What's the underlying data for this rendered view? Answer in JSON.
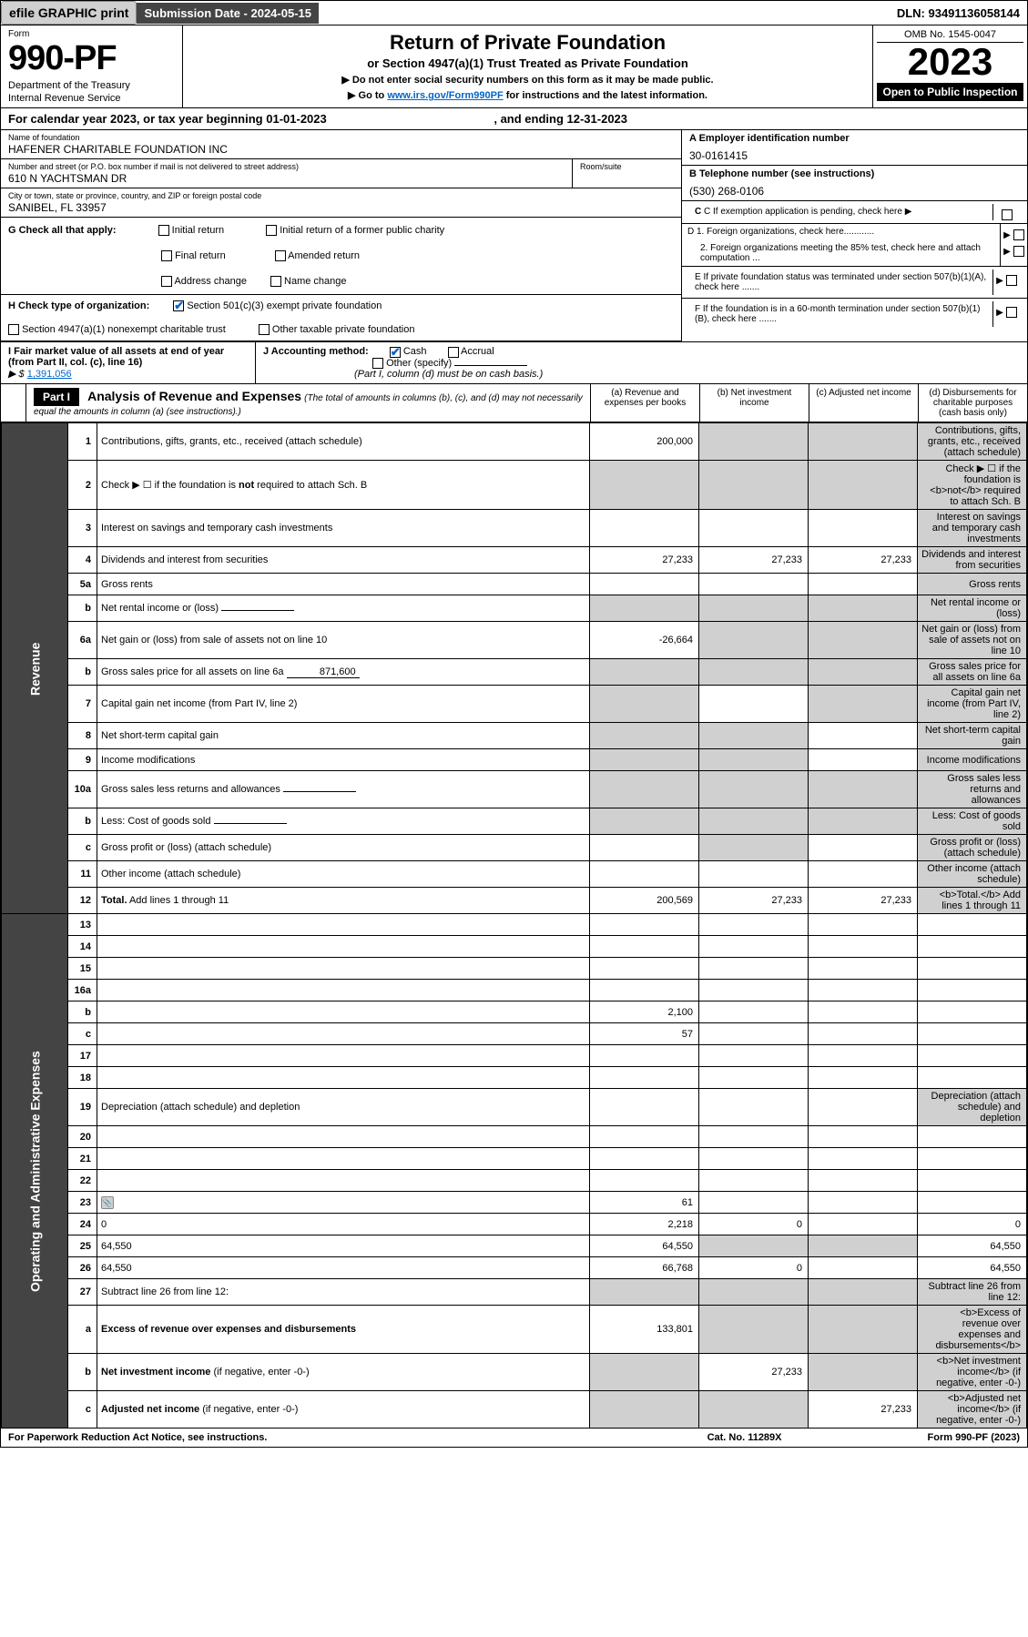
{
  "topbar": {
    "efile": "efile GRAPHIC print",
    "submission": "Submission Date - 2024-05-15",
    "dln": "DLN: 93491136058144"
  },
  "header": {
    "form_label": "Form",
    "form_number": "990-PF",
    "dept1": "Department of the Treasury",
    "dept2": "Internal Revenue Service",
    "title": "Return of Private Foundation",
    "subtitle": "or Section 4947(a)(1) Trust Treated as Private Foundation",
    "note1": "▶ Do not enter social security numbers on this form as it may be made public.",
    "note2_pre": "▶ Go to ",
    "note2_link": "www.irs.gov/Form990PF",
    "note2_post": " for instructions and the latest information.",
    "omb": "OMB No. 1545-0047",
    "year": "2023",
    "inspection": "Open to Public Inspection"
  },
  "cal_year": {
    "prefix": "For calendar year 2023, or tax year beginning ",
    "begin": "01-01-2023",
    "mid": " , and ending ",
    "end": "12-31-2023"
  },
  "entity": {
    "name_label": "Name of foundation",
    "name": "HAFENER CHARITABLE FOUNDATION INC",
    "addr_label": "Number and street (or P.O. box number if mail is not delivered to street address)",
    "addr": "610 N YACHTSMAN DR",
    "room_label": "Room/suite",
    "city_label": "City or town, state or province, country, and ZIP or foreign postal code",
    "city": "SANIBEL, FL  33957",
    "a_label": "A Employer identification number",
    "a_val": "30-0161415",
    "b_label": "B Telephone number (see instructions)",
    "b_val": "(530) 268-0106",
    "c_label": "C If exemption application is pending, check here",
    "d1": "D 1. Foreign organizations, check here............",
    "d2": "2. Foreign organizations meeting the 85% test, check here and attach computation ...",
    "e": "E  If private foundation status was terminated under section 507(b)(1)(A), check here .......",
    "f": "F  If the foundation is in a 60-month termination under section 507(b)(1)(B), check here .......",
    "g_label": "G Check all that apply:",
    "g_opts": [
      "Initial return",
      "Initial return of a former public charity",
      "Final return",
      "Amended return",
      "Address change",
      "Name change"
    ],
    "h_label": "H Check type of organization:",
    "h1": "Section 501(c)(3) exempt private foundation",
    "h2": "Section 4947(a)(1) nonexempt charitable trust",
    "h3": "Other taxable private foundation",
    "i_label": "I Fair market value of all assets at end of year (from Part II, col. (c), line 16)",
    "i_prefix": "▶ $",
    "i_val": "1,391,056",
    "j_label": "J Accounting method:",
    "j_cash": "Cash",
    "j_accrual": "Accrual",
    "j_other": "Other (specify)",
    "j_note": "(Part I, column (d) must be on cash basis.)"
  },
  "part1": {
    "label": "Part I",
    "title": "Analysis of Revenue and Expenses",
    "title_note": "(The total of amounts in columns (b), (c), and (d) may not necessarily equal the amounts in column (a) (see instructions).)",
    "col_a": "(a) Revenue and expenses per books",
    "col_b": "(b) Net investment income",
    "col_c": "(c) Adjusted net income",
    "col_d": "(d) Disbursements for charitable purposes (cash basis only)",
    "side_revenue": "Revenue",
    "side_expenses": "Operating and Administrative Expenses"
  },
  "rows": [
    {
      "n": "1",
      "d": "Contributions, gifts, grants, etc., received (attach schedule)",
      "a": "200,000",
      "b_shade": true,
      "c_shade": true,
      "d_shade": true
    },
    {
      "n": "2",
      "d": "Check ▶ ☐ if the foundation is <b>not</b> required to attach Sch. B",
      "dots": true,
      "a_shade": true,
      "b_shade": true,
      "c_shade": true,
      "d_shade": true
    },
    {
      "n": "3",
      "d": "Interest on savings and temporary cash investments",
      "a": "",
      "b": "",
      "c": "",
      "d_shade": true
    },
    {
      "n": "4",
      "d": "Dividends and interest from securities",
      "dots": true,
      "a": "27,233",
      "b": "27,233",
      "c": "27,233",
      "d_shade": true
    },
    {
      "n": "5a",
      "d": "Gross rents",
      "dots": true,
      "a": "",
      "b": "",
      "c": "",
      "d_shade": true
    },
    {
      "n": "b",
      "d": "Net rental income or (loss)",
      "inline": "",
      "a_shade": true,
      "b_shade": true,
      "c_shade": true,
      "d_shade": true
    },
    {
      "n": "6a",
      "d": "Net gain or (loss) from sale of assets not on line 10",
      "a": "-26,664",
      "b_shade": true,
      "c_shade": true,
      "d_shade": true
    },
    {
      "n": "b",
      "d": "Gross sales price for all assets on line 6a",
      "inline": "871,600",
      "a_shade": true,
      "b_shade": true,
      "c_shade": true,
      "d_shade": true
    },
    {
      "n": "7",
      "d": "Capital gain net income (from Part IV, line 2)",
      "dots": true,
      "a_shade": true,
      "b": "",
      "c_shade": true,
      "d_shade": true
    },
    {
      "n": "8",
      "d": "Net short-term capital gain",
      "dots": true,
      "a_shade": true,
      "b_shade": true,
      "c": "",
      "d_shade": true
    },
    {
      "n": "9",
      "d": "Income modifications",
      "dots": true,
      "a_shade": true,
      "b_shade": true,
      "c": "",
      "d_shade": true
    },
    {
      "n": "10a",
      "d": "Gross sales less returns and allowances",
      "inline": "",
      "a_shade": true,
      "b_shade": true,
      "c_shade": true,
      "d_shade": true
    },
    {
      "n": "b",
      "d": "Less: Cost of goods sold",
      "dots": true,
      "inline": "",
      "a_shade": true,
      "b_shade": true,
      "c_shade": true,
      "d_shade": true
    },
    {
      "n": "c",
      "d": "Gross profit or (loss) (attach schedule)",
      "dots": true,
      "a": "",
      "b_shade": true,
      "c": "",
      "d_shade": true
    },
    {
      "n": "11",
      "d": "Other income (attach schedule)",
      "dots": true,
      "a": "",
      "b": "",
      "c": "",
      "d_shade": true
    },
    {
      "n": "12",
      "d": "<b>Total.</b> Add lines 1 through 11",
      "dots": true,
      "a": "200,569",
      "b": "27,233",
      "c": "27,233",
      "d_shade": true
    },
    {
      "n": "13",
      "d": "",
      "a": "",
      "b": "",
      "c": ""
    },
    {
      "n": "14",
      "d": "",
      "dots": true,
      "a": "",
      "b": "",
      "c": ""
    },
    {
      "n": "15",
      "d": "",
      "dots": true,
      "a": "",
      "b": "",
      "c": ""
    },
    {
      "n": "16a",
      "d": "",
      "dots": true,
      "a": "",
      "b": "",
      "c": ""
    },
    {
      "n": "b",
      "d": "",
      "dots": true,
      "a": "2,100",
      "b": "",
      "c": ""
    },
    {
      "n": "c",
      "d": "",
      "dots": true,
      "a": "57",
      "b": "",
      "c": ""
    },
    {
      "n": "17",
      "d": "",
      "dots": true,
      "a": "",
      "b": "",
      "c": ""
    },
    {
      "n": "18",
      "d": "",
      "dots": true,
      "a": "",
      "b": "",
      "c": ""
    },
    {
      "n": "19",
      "d": "Depreciation (attach schedule) and depletion",
      "dots": true,
      "a": "",
      "b": "",
      "c": "",
      "d_shade": true
    },
    {
      "n": "20",
      "d": "",
      "dots": true,
      "a": "",
      "b": "",
      "c": ""
    },
    {
      "n": "21",
      "d": "",
      "dots": true,
      "a": "",
      "b": "",
      "c": ""
    },
    {
      "n": "22",
      "d": "",
      "dots": true,
      "a": "",
      "b": "",
      "c": ""
    },
    {
      "n": "23",
      "d": "",
      "dots": true,
      "icon": true,
      "a": "61",
      "b": "",
      "c": ""
    },
    {
      "n": "24",
      "d": "0",
      "dots": true,
      "a": "2,218",
      "b": "0",
      "c": ""
    },
    {
      "n": "25",
      "d": "64,550",
      "dots": true,
      "a": "64,550",
      "b_shade": true,
      "c_shade": true
    },
    {
      "n": "26",
      "d": "64,550",
      "a": "66,768",
      "b": "0",
      "c": ""
    },
    {
      "n": "27",
      "d": "Subtract line 26 from line 12:",
      "a_shade": true,
      "b_shade": true,
      "c_shade": true,
      "d_shade": true
    },
    {
      "n": "a",
      "d": "<b>Excess of revenue over expenses and disbursements</b>",
      "a": "133,801",
      "b_shade": true,
      "c_shade": true,
      "d_shade": true
    },
    {
      "n": "b",
      "d": "<b>Net investment income</b> (if negative, enter -0-)",
      "a_shade": true,
      "b": "27,233",
      "c_shade": true,
      "d_shade": true
    },
    {
      "n": "c",
      "d": "<b>Adjusted net income</b> (if negative, enter -0-)",
      "dots": true,
      "a_shade": true,
      "b_shade": true,
      "c": "27,233",
      "d_shade": true
    }
  ],
  "footer": {
    "left": "For Paperwork Reduction Act Notice, see instructions.",
    "mid": "Cat. No. 11289X",
    "right": "Form 990-PF (2023)"
  }
}
